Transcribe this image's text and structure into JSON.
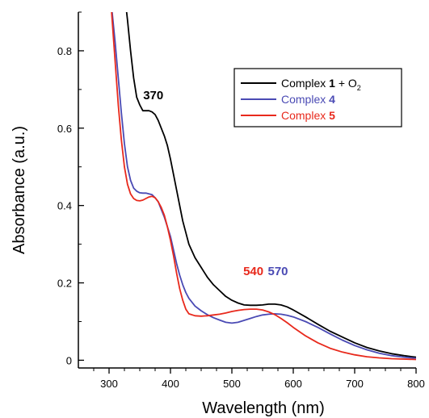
{
  "chart_data": {
    "type": "line",
    "xlabel": "Wavelength (nm)",
    "ylabel": "Absorbance (a.u.)",
    "xlim": [
      250,
      800
    ],
    "ylim": [
      -0.02,
      0.9
    ],
    "x_ticks": [
      300,
      400,
      500,
      600,
      700,
      800
    ],
    "y_ticks": [
      0,
      0.2,
      0.4,
      0.6,
      0.8
    ],
    "y_tick_labels": [
      "0",
      "0.2",
      "0.4",
      "0.6",
      "0.8"
    ],
    "grid": false,
    "legend_position": "top-right",
    "series": [
      {
        "name": "Complex 1 + O2",
        "legend": {
          "prefix": "Complex ",
          "bold": "1",
          "suffix": " + O",
          "sub": "2"
        },
        "color": "#000000",
        "x": [
          325,
          330,
          335,
          340,
          345,
          350,
          355,
          360,
          365,
          370,
          375,
          380,
          385,
          390,
          395,
          400,
          405,
          410,
          415,
          420,
          425,
          430,
          440,
          450,
          460,
          470,
          480,
          490,
          500,
          510,
          520,
          530,
          540,
          550,
          560,
          570,
          580,
          590,
          600,
          620,
          640,
          660,
          680,
          700,
          720,
          740,
          760,
          780,
          800
        ],
        "y": [
          0.95,
          0.88,
          0.8,
          0.73,
          0.68,
          0.66,
          0.645,
          0.645,
          0.645,
          0.642,
          0.635,
          0.62,
          0.6,
          0.58,
          0.555,
          0.52,
          0.48,
          0.44,
          0.4,
          0.36,
          0.33,
          0.3,
          0.265,
          0.24,
          0.215,
          0.195,
          0.18,
          0.165,
          0.155,
          0.148,
          0.143,
          0.142,
          0.142,
          0.143,
          0.145,
          0.145,
          0.143,
          0.138,
          0.13,
          0.112,
          0.093,
          0.075,
          0.06,
          0.045,
          0.033,
          0.024,
          0.017,
          0.012,
          0.008
        ]
      },
      {
        "name": "Complex 4",
        "legend": {
          "prefix": "Complex ",
          "bold": "4",
          "suffix": "",
          "sub": ""
        },
        "color": "#4a4ab4",
        "x": [
          302,
          305,
          310,
          315,
          320,
          325,
          330,
          335,
          340,
          345,
          350,
          355,
          360,
          365,
          370,
          375,
          380,
          385,
          390,
          395,
          400,
          405,
          410,
          415,
          420,
          425,
          430,
          440,
          450,
          460,
          470,
          480,
          490,
          500,
          510,
          520,
          530,
          540,
          550,
          560,
          570,
          580,
          590,
          600,
          620,
          640,
          660,
          680,
          700,
          720,
          740,
          760,
          780,
          800
        ],
        "y": [
          0.95,
          0.9,
          0.82,
          0.73,
          0.64,
          0.56,
          0.5,
          0.465,
          0.445,
          0.437,
          0.433,
          0.432,
          0.432,
          0.43,
          0.428,
          0.42,
          0.41,
          0.39,
          0.37,
          0.345,
          0.32,
          0.285,
          0.25,
          0.22,
          0.195,
          0.175,
          0.16,
          0.14,
          0.128,
          0.118,
          0.11,
          0.104,
          0.098,
          0.096,
          0.098,
          0.103,
          0.108,
          0.113,
          0.117,
          0.119,
          0.12,
          0.119,
          0.116,
          0.112,
          0.1,
          0.085,
          0.068,
          0.052,
          0.038,
          0.027,
          0.018,
          0.012,
          0.008,
          0.005
        ]
      },
      {
        "name": "Complex 5",
        "legend": {
          "prefix": "Complex ",
          "bold": "5",
          "suffix": "",
          "sub": ""
        },
        "color": "#e8291c",
        "x": [
          302,
          305,
          310,
          315,
          320,
          325,
          330,
          335,
          340,
          345,
          350,
          355,
          360,
          365,
          370,
          375,
          380,
          385,
          390,
          395,
          400,
          405,
          410,
          415,
          420,
          425,
          430,
          440,
          450,
          460,
          470,
          480,
          490,
          500,
          510,
          520,
          530,
          540,
          550,
          560,
          570,
          580,
          590,
          600,
          620,
          640,
          660,
          680,
          700,
          720,
          740,
          760,
          780,
          800
        ],
        "y": [
          0.95,
          0.88,
          0.77,
          0.66,
          0.57,
          0.5,
          0.455,
          0.43,
          0.418,
          0.413,
          0.412,
          0.414,
          0.418,
          0.422,
          0.424,
          0.42,
          0.41,
          0.395,
          0.375,
          0.345,
          0.31,
          0.27,
          0.225,
          0.185,
          0.155,
          0.132,
          0.12,
          0.115,
          0.114,
          0.115,
          0.117,
          0.119,
          0.122,
          0.126,
          0.129,
          0.131,
          0.132,
          0.132,
          0.13,
          0.125,
          0.118,
          0.108,
          0.097,
          0.085,
          0.063,
          0.045,
          0.031,
          0.021,
          0.014,
          0.009,
          0.006,
          0.004,
          0.003,
          0.002
        ]
      }
    ],
    "annotations": [
      {
        "text": "370",
        "x": 372,
        "y": 0.675,
        "color": "#000000"
      },
      {
        "text": "540",
        "x": 535,
        "y": 0.22,
        "color": "#e8291c"
      },
      {
        "text": "570",
        "x": 575,
        "y": 0.22,
        "color": "#4a4ab4"
      }
    ]
  }
}
